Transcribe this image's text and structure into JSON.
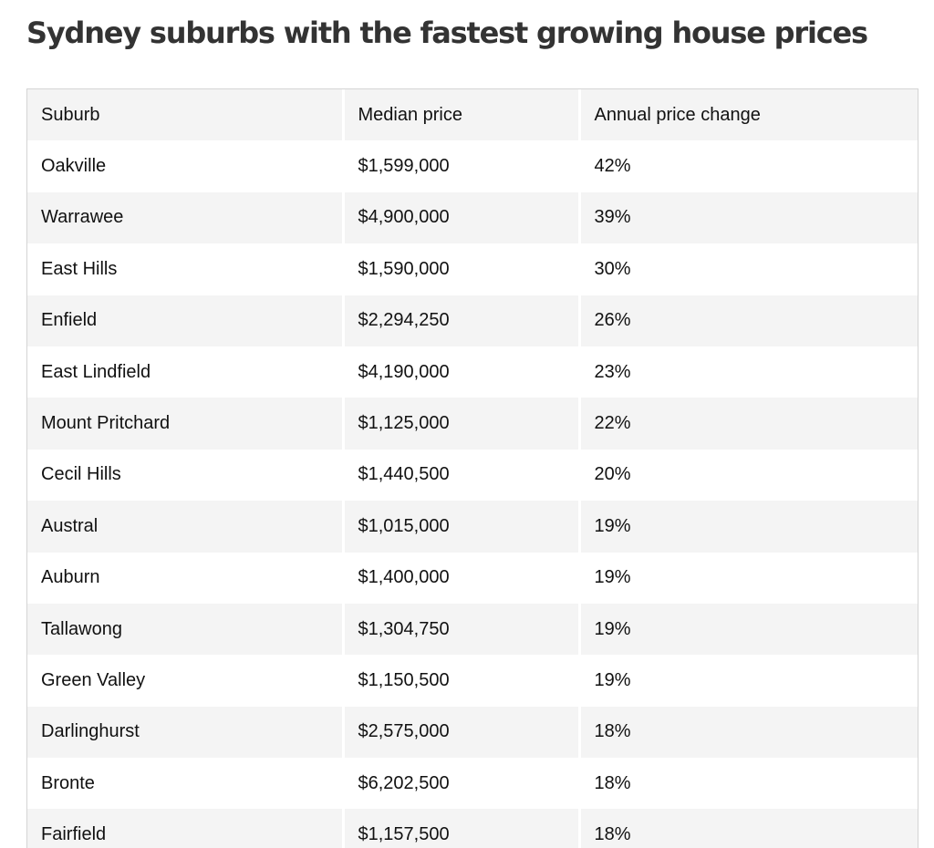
{
  "page": {
    "title": "Sydney suburbs with the fastest growing house prices"
  },
  "table": {
    "headers": [
      "Suburb",
      "Median price",
      "Annual price change"
    ],
    "rows": [
      [
        "Oakville",
        "$1,599,000",
        "42%"
      ],
      [
        "Warrawee",
        "$4,900,000",
        "39%"
      ],
      [
        "East Hills",
        "$1,590,000",
        "30%"
      ],
      [
        "Enfield",
        "$2,294,250",
        "26%"
      ],
      [
        "East Lindfield",
        "$4,190,000",
        "23%"
      ],
      [
        "Mount Pritchard",
        "$1,125,000",
        "22%"
      ],
      [
        "Cecil Hills",
        "$1,440,500",
        "20%"
      ],
      [
        "Austral",
        "$1,015,000",
        "19%"
      ],
      [
        "Auburn",
        "$1,400,000",
        "19%"
      ],
      [
        "Tallawong",
        "$1,304,750",
        "19%"
      ],
      [
        "Green Valley",
        "$1,150,500",
        "19%"
      ],
      [
        "Darlinghurst",
        "$2,575,000",
        "18%"
      ],
      [
        "Bronte",
        "$6,202,500",
        "18%"
      ],
      [
        "Fairfield",
        "$1,157,500",
        "18%"
      ]
    ]
  },
  "colors": {
    "title": "#333333",
    "stripe": "#f4f4f4",
    "border": "#d4d4d4",
    "text": "#111111"
  }
}
